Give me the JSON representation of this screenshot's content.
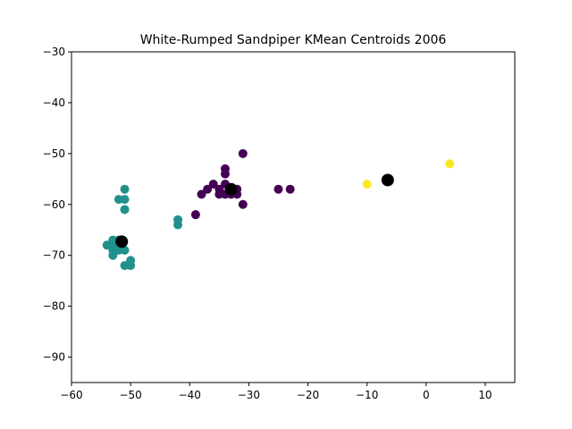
{
  "chart_data": {
    "type": "scatter",
    "title": "White-Rumped Sandpiper KMean Centroids 2006",
    "xlabel": "",
    "ylabel": "",
    "xlim": [
      -60,
      15
    ],
    "ylim": [
      -95,
      -30
    ],
    "xticks": [
      -60,
      -50,
      -40,
      -30,
      -20,
      -10,
      0,
      10
    ],
    "xtick_labels": [
      "−60",
      "−50",
      "−40",
      "−30",
      "−20",
      "−10",
      "0",
      "10"
    ],
    "yticks": [
      -30,
      -40,
      -50,
      -60,
      -70,
      -80,
      -90
    ],
    "ytick_labels": [
      "−30",
      "−40",
      "−50",
      "−60",
      "−70",
      "−80",
      "−90"
    ],
    "grid": false,
    "colors": {
      "cluster_0": "#440154",
      "cluster_1": "#21918c",
      "cluster_2": "#fde725",
      "centroid": "#000000"
    },
    "series": [
      {
        "cluster": "cluster_0",
        "points": [
          [
            -31,
            -50
          ],
          [
            -34,
            -53
          ],
          [
            -34,
            -54
          ],
          [
            -34,
            -56
          ],
          [
            -36,
            -56
          ],
          [
            -35,
            -57
          ],
          [
            -37,
            -57
          ],
          [
            -34,
            -58
          ],
          [
            -33,
            -58
          ],
          [
            -32,
            -58
          ],
          [
            -38,
            -58
          ],
          [
            -33,
            -57
          ],
          [
            -25,
            -57
          ],
          [
            -23,
            -57
          ],
          [
            -39,
            -62
          ],
          [
            -31,
            -60
          ],
          [
            -32,
            -57
          ],
          [
            -35,
            -58
          ]
        ]
      },
      {
        "cluster": "cluster_1",
        "points": [
          [
            -51,
            -57
          ],
          [
            -52,
            -59
          ],
          [
            -51,
            -59
          ],
          [
            -51,
            -61
          ],
          [
            -42,
            -63
          ],
          [
            -42,
            -64
          ],
          [
            -54,
            -68
          ],
          [
            -53,
            -67
          ],
          [
            -53,
            -68
          ],
          [
            -52,
            -67
          ],
          [
            -51,
            -69
          ],
          [
            -52,
            -69
          ],
          [
            -53,
            -70
          ],
          [
            -51,
            -72
          ],
          [
            -50,
            -71
          ],
          [
            -50,
            -72
          ],
          [
            -52,
            -68
          ],
          [
            -53,
            -69
          ]
        ]
      },
      {
        "cluster": "cluster_2",
        "points": [
          [
            -10,
            -56
          ],
          [
            4,
            -52
          ]
        ]
      }
    ],
    "centroids": [
      [
        -33,
        -57
      ],
      [
        -51.5,
        -67.3
      ],
      [
        -6.5,
        -55.2
      ]
    ]
  }
}
